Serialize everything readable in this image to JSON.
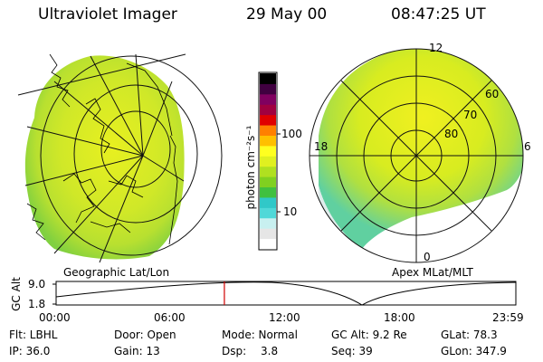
{
  "header": {
    "instrument": "Ultraviolet Imager",
    "date": "29 May 00",
    "time": "08:47:25 UT"
  },
  "left_panel": {
    "caption": "Geographic Lat/Lon"
  },
  "right_panel": {
    "caption": "Apex MLat/MLT",
    "mlt_labels": [
      "12",
      "18",
      "6",
      "0"
    ],
    "mlat_labels": [
      "60",
      "70",
      "80"
    ]
  },
  "colorbar": {
    "unit_label": "photon cm⁻²s⁻¹",
    "tick_labels": [
      "100",
      "10"
    ],
    "colors": [
      "#ffffff",
      "#e6e6e6",
      "#c8f0f0",
      "#50d8d8",
      "#30c8c8",
      "#40c040",
      "#80d020",
      "#b0e020",
      "#e0f020",
      "#ffff20",
      "#ffc000",
      "#ff8000",
      "#e00000",
      "#a00040",
      "#800060",
      "#400040",
      "#000000"
    ]
  },
  "timeline": {
    "axis_title": "GC Alt",
    "y_ticks": [
      "9.0",
      "1.8"
    ],
    "x_ticks": [
      "00:00",
      "06:00",
      "12:00",
      "18:00",
      "23:59"
    ],
    "current_time_fraction": 0.366,
    "cursor_color": "#d00000"
  },
  "info": {
    "row1": {
      "filter": "Flt: LBHL",
      "door": "Door: Open",
      "mode": "Mode: Normal",
      "gc_alt": "GC Alt: 9.2 Re",
      "glat": "GLat: 78.3"
    },
    "row2": {
      "ip": "IP: 36.0",
      "gain": "Gain: 13",
      "dsp_label": "Dsp:",
      "dsp_value": "3.8",
      "seq": "Seq: 39",
      "glon": "GLon: 347.9"
    }
  }
}
